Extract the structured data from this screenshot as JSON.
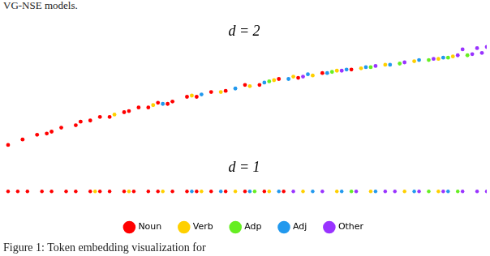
{
  "text": {
    "above": "VG-NSE models.",
    "caption": "Figure 1: Token embedding visualization for"
  },
  "chart_data": [
    {
      "type": "scatter",
      "title": "d = 2",
      "tick_labels": false,
      "grid": false,
      "xlim": [
        0,
        10
      ],
      "ylim": [
        0,
        5
      ],
      "series": [
        {
          "name": "Noun",
          "color": "#ff0000",
          "marker": "circle",
          "x": [
            0.1,
            0.4,
            0.7,
            1.0,
            1.2,
            1.5,
            1.8,
            2.0,
            2.2,
            2.5,
            2.8,
            3.0,
            3.2,
            3.5,
            3.8,
            4.0,
            4.3,
            4.6,
            5.0,
            5.3,
            5.7,
            6.1,
            6.6,
            7.2,
            0.9,
            1.6,
            2.6,
            3.4
          ],
          "values": [
            0.72,
            0.95,
            1.15,
            1.28,
            1.45,
            1.55,
            1.75,
            1.9,
            1.9,
            2.1,
            2.3,
            2.3,
            2.5,
            2.55,
            2.75,
            2.75,
            2.95,
            3.0,
            3.25,
            3.25,
            3.5,
            3.55,
            3.75,
            3.9,
            1.2,
            1.7,
            2.15,
            2.45
          ]
        },
        {
          "name": "Verb",
          "color": "#ffd000",
          "marker": "circle",
          "x": [
            2.3,
            3.1,
            3.9,
            4.5,
            5.1,
            5.6,
            6.0,
            6.4,
            6.9,
            7.4,
            7.9,
            8.5,
            9.0,
            9.3
          ],
          "values": [
            2.0,
            2.4,
            2.8,
            2.95,
            3.2,
            3.45,
            3.6,
            3.65,
            3.85,
            3.95,
            4.1,
            4.25,
            4.35,
            4.45
          ]
        },
        {
          "name": "Adp",
          "color": "#66ee22",
          "marker": "circle",
          "x": [
            5.5,
            6.8,
            7.6,
            8.2,
            8.8,
            9.2,
            9.6
          ],
          "values": [
            3.4,
            3.8,
            4.0,
            4.15,
            4.3,
            4.4,
            4.5
          ]
        },
        {
          "name": "Adj",
          "color": "#2299ee",
          "marker": "circle",
          "x": [
            3.3,
            4.1,
            4.8,
            5.4,
            5.9,
            6.3,
            6.7,
            7.1,
            7.5,
            8.0,
            8.6,
            9.1
          ],
          "values": [
            2.45,
            2.85,
            3.1,
            3.35,
            3.5,
            3.7,
            3.75,
            3.9,
            4.0,
            4.1,
            4.3,
            4.4
          ]
        },
        {
          "name": "Other",
          "color": "#9933ff",
          "marker": "circle",
          "x": [
            6.2,
            7.0,
            7.7,
            8.3,
            8.9,
            9.4,
            9.7,
            9.9,
            9.5,
            9.8,
            10.0
          ],
          "values": [
            3.6,
            3.85,
            4.05,
            4.2,
            4.35,
            4.5,
            4.55,
            4.6,
            4.75,
            4.8,
            4.85
          ]
        }
      ]
    },
    {
      "type": "strip",
      "title": "d = 1",
      "tick_labels": false,
      "grid": false,
      "legend": "bottom",
      "xlim": [
        0,
        10
      ],
      "series": [
        {
          "name": "Noun",
          "color": "#ff0000",
          "marker": "circle",
          "x": [
            0.1,
            0.3,
            0.5,
            0.8,
            1.0,
            1.3,
            1.5,
            1.8,
            2.0,
            2.2,
            2.5,
            2.7,
            3.0,
            3.2,
            3.5,
            3.8,
            4.0,
            4.3,
            4.6,
            5.0,
            5.4,
            5.8
          ]
        },
        {
          "name": "Verb",
          "color": "#ffd000",
          "marker": "circle",
          "x": [
            1.9,
            2.6,
            3.3,
            4.1,
            4.8,
            5.5,
            6.2,
            6.9,
            7.6,
            8.3,
            9.0
          ]
        },
        {
          "name": "Adp",
          "color": "#66ee22",
          "marker": "circle",
          "x": [
            5.2,
            7.2,
            8.8,
            9.4
          ]
        },
        {
          "name": "Adj",
          "color": "#2299ee",
          "marker": "circle",
          "x": [
            3.9,
            4.5,
            5.1,
            5.7,
            6.4,
            7.0,
            7.7,
            8.5,
            9.2
          ]
        },
        {
          "name": "Other",
          "color": "#9933ff",
          "marker": "circle",
          "x": [
            6.0,
            6.6,
            7.3,
            7.9,
            8.1,
            8.6,
            9.1,
            9.5,
            9.8,
            10.0
          ]
        }
      ]
    }
  ]
}
